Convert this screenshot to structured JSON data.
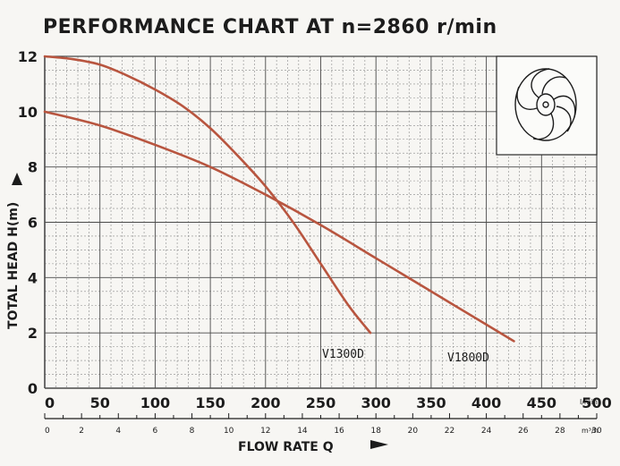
{
  "title": "PERFORMANCE CHART AT n=2860 r/min",
  "colors": {
    "curve": "#b8553f",
    "grid_major": "#4a4a4a",
    "grid_minor": "#8a8a8a",
    "background": "#f7f6f3",
    "text": "#1c1c1c"
  },
  "icons": {
    "inset": "impeller-icon"
  },
  "chart_data": {
    "type": "line",
    "title": "PERFORMANCE CHART AT n=2860 r/min",
    "xlabel": "FLOW RATE Q",
    "ylabel": "TOTAL HEAD H(m)",
    "x_unit": "l/min",
    "x2_unit": "m³/h",
    "xlim": [
      0,
      500
    ],
    "ylim": [
      0,
      12
    ],
    "grid": true,
    "x_ticks": [
      "0",
      "50",
      "100",
      "150",
      "200",
      "250",
      "300",
      "350",
      "400",
      "450",
      "500"
    ],
    "x2_ticks": [
      "0",
      "2",
      "4",
      "6",
      "8",
      "10",
      "12",
      "14",
      "16",
      "18",
      "20",
      "22",
      "24",
      "26",
      "28",
      "30"
    ],
    "y_ticks": [
      "0",
      "2",
      "4",
      "6",
      "8",
      "10",
      "12"
    ],
    "series": [
      {
        "name": "V1300D",
        "x": [
          0,
          25,
          50,
          75,
          100,
          125,
          150,
          175,
          200,
          225,
          250,
          275,
          295
        ],
        "y": [
          12.0,
          11.9,
          11.7,
          11.3,
          10.8,
          10.2,
          9.4,
          8.4,
          7.3,
          6.0,
          4.5,
          3.0,
          2.0
        ]
      },
      {
        "name": "V1800D",
        "x": [
          0,
          50,
          100,
          150,
          200,
          250,
          300,
          350,
          400,
          425
        ],
        "y": [
          10.0,
          9.5,
          8.8,
          8.0,
          7.0,
          5.9,
          4.7,
          3.5,
          2.3,
          1.7
        ]
      }
    ]
  }
}
